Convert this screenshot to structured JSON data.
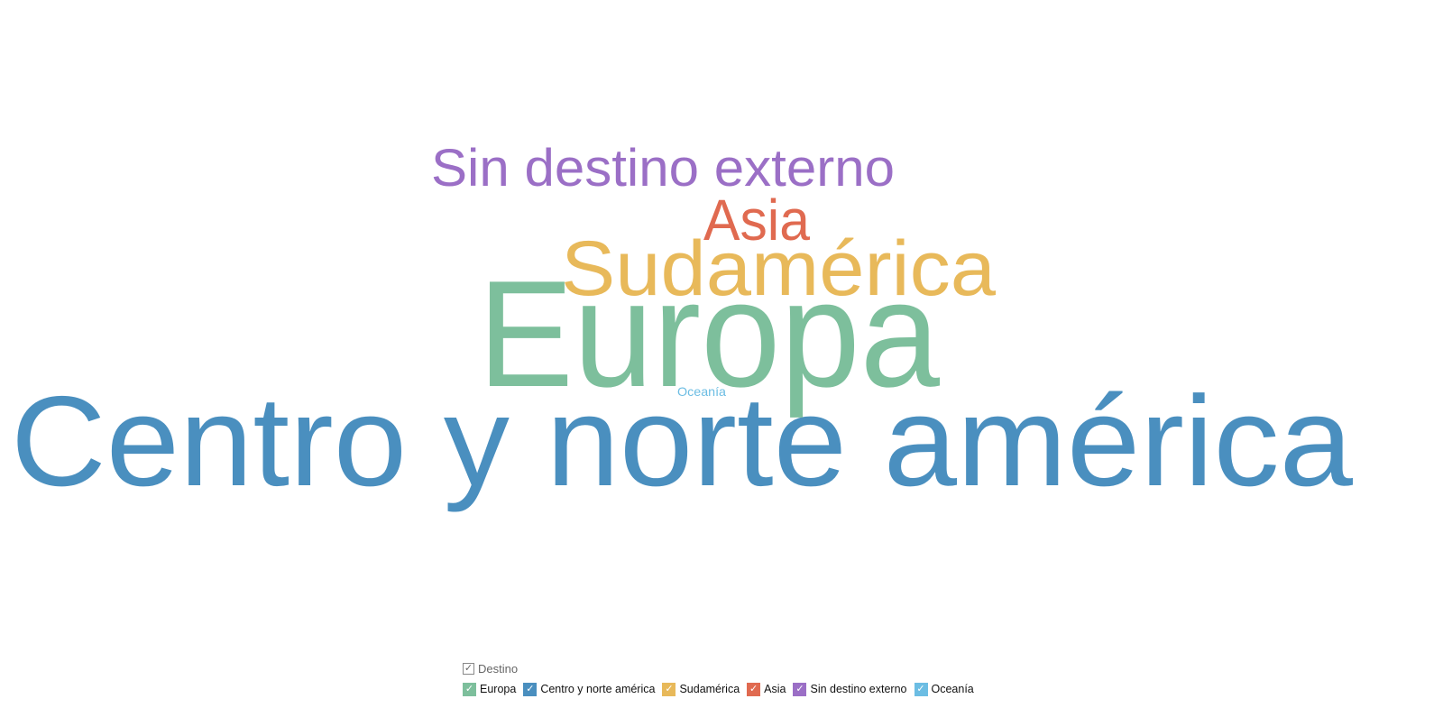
{
  "chart_data": {
    "type": "wordcloud",
    "words": [
      {
        "text": "Centro y norte américa",
        "color": "#4a8fbf"
      },
      {
        "text": "Europa",
        "color": "#7dbf9c"
      },
      {
        "text": "Sudamérica",
        "color": "#e8b95a"
      },
      {
        "text": "Asia",
        "color": "#e06a50"
      },
      {
        "text": "Sin destino externo",
        "color": "#9b6fc6"
      },
      {
        "text": "Oceanía",
        "color": "#6cbde3"
      }
    ]
  },
  "legend": {
    "title": "Destino",
    "check_glyph": "✓",
    "items": [
      {
        "label": "Europa",
        "color": "#7dbf9c"
      },
      {
        "label": "Centro y norte américa",
        "color": "#4a8fbf"
      },
      {
        "label": "Sudamérica",
        "color": "#e8b95a"
      },
      {
        "label": "Asia",
        "color": "#e06a50"
      },
      {
        "label": "Sin destino externo",
        "color": "#9b6fc6"
      },
      {
        "label": "Oceanía",
        "color": "#6cbde3"
      }
    ]
  }
}
